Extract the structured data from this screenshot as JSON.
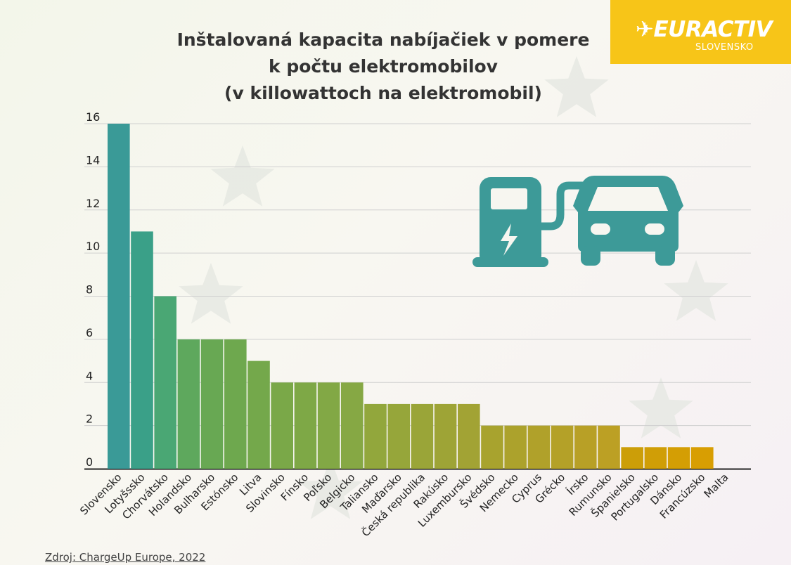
{
  "title_lines": [
    "Inštalovaná kapacita nabíjačiek v pomere",
    "k počtu elektromobilov",
    "(v killowattoch na elektromobil)"
  ],
  "logo": {
    "brand": "EURACTIV",
    "edition": "SLOVENSKO",
    "color": "#f7c518"
  },
  "icon": {
    "name": "charging-station-car-icon",
    "color": "#3d9a98"
  },
  "source": "Zdroj: ChargeUp Europe, 2022",
  "chart_data": {
    "type": "bar",
    "categories": [
      "Slovensko",
      "Lotyšssko",
      "Chorvátsko",
      "Holandsko",
      "Bulharsko",
      "Estónsko",
      "Litva",
      "Slovinsko",
      "Fínsko",
      "Poľsko",
      "Belgicko",
      "Taliansko",
      "Maďarsko",
      "Česká republika",
      "Rakúsko",
      "Luxembursko",
      "Švédsko",
      "Nemecko",
      "Cyprus",
      "Grécko",
      "Írsko",
      "Rumunsko",
      "Španielsko",
      "Portugalsko",
      "Dánsko",
      "Francúzsko",
      "Malta"
    ],
    "values": [
      16,
      11,
      8,
      6,
      6,
      6,
      5,
      4,
      4,
      4,
      4,
      3,
      3,
      3,
      3,
      3,
      2,
      2,
      2,
      2,
      2,
      2,
      1,
      1,
      1,
      1,
      0
    ],
    "ylim": [
      0,
      16
    ],
    "yticks": [
      0,
      2,
      4,
      6,
      8,
      10,
      12,
      14,
      16
    ],
    "grid": true,
    "bar_colors": [
      "#3a9a97",
      "#3aa088",
      "#4aa774",
      "#5ea85d",
      "#68a853",
      "#6ea84e",
      "#74a84b",
      "#7aa848",
      "#7ea846",
      "#82a845",
      "#86a844",
      "#92a73c",
      "#96a63a",
      "#9aa538",
      "#9ea436",
      "#a2a334",
      "#a8a32e",
      "#aca22c",
      "#b0a12a",
      "#b4a128",
      "#b8a026",
      "#bca024",
      "#cc9e08",
      "#d09e06",
      "#d49e04",
      "#d89e02",
      "#dc9e00"
    ]
  }
}
